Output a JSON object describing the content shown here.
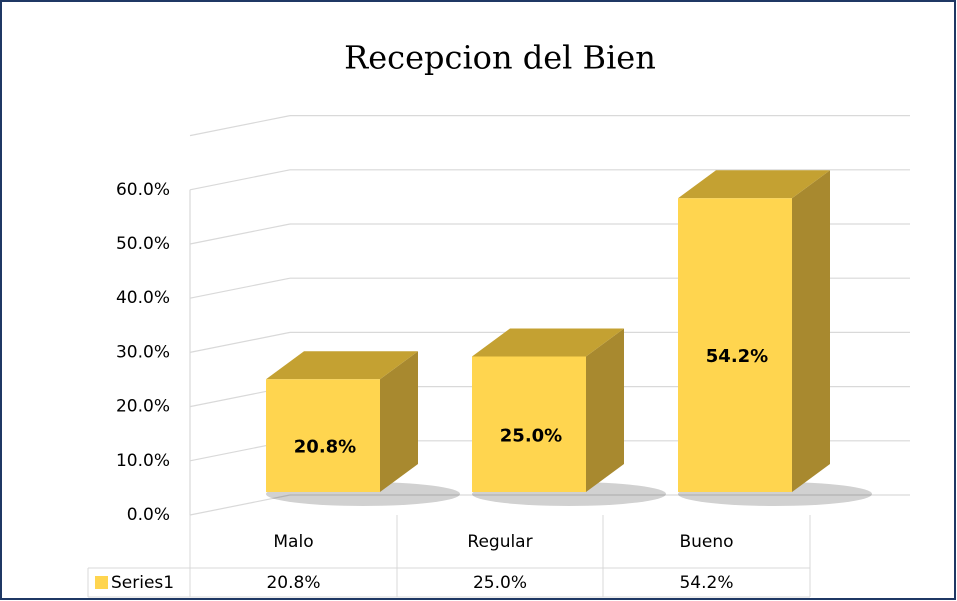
{
  "chart_data": {
    "type": "bar3d",
    "title": "Recepcion del Bien",
    "categories": [
      "Malo",
      "Regular",
      "Bueno"
    ],
    "series": [
      {
        "name": "Series1",
        "color": "#ffd54f",
        "values": [
          20.8,
          25.0,
          54.2
        ],
        "value_labels": [
          "20.8%",
          "25.0%",
          "54.2%"
        ]
      }
    ],
    "ylim": [
      0,
      70
    ],
    "yticks": [
      {
        "value": 0,
        "label": "0.0%"
      },
      {
        "value": 10,
        "label": "10.0%"
      },
      {
        "value": 20,
        "label": "20.0%"
      },
      {
        "value": 30,
        "label": "30.0%"
      },
      {
        "value": 40,
        "label": "40.0%"
      },
      {
        "value": 50,
        "label": "50.0%"
      },
      {
        "value": 60,
        "label": "60.0%"
      }
    ],
    "grid": true,
    "data_table": true
  }
}
